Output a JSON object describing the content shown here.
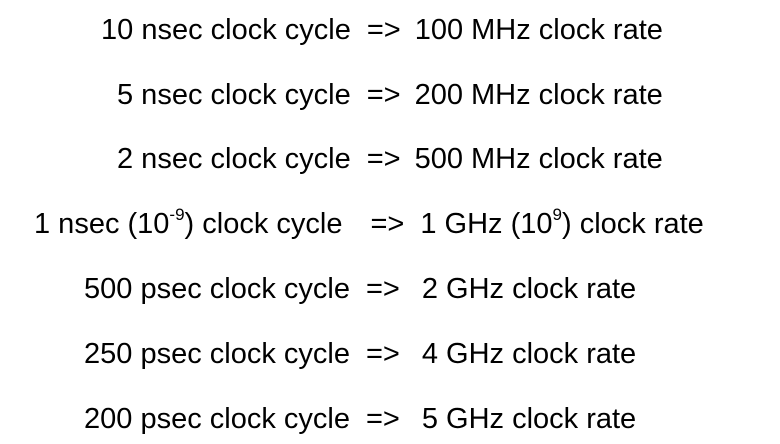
{
  "lines": [
    {
      "cycle": "10 nsec clock cycle",
      "arrow": "=>",
      "rate": "100 MHz clock rate"
    },
    {
      "cycle": "5 nsec clock cycle",
      "arrow": "=>",
      "rate": "200 MHz clock rate"
    },
    {
      "cycle": "2 nsec clock cycle",
      "arrow": "=>",
      "rate": "500 MHz clock rate"
    },
    {
      "cycle_pre": "1 nsec (10",
      "cycle_exp": "-9",
      "cycle_post": ") clock cycle",
      "arrow": "=>",
      "rate_pre": "1 GHz (10",
      "rate_exp": "9",
      "rate_post": ") clock rate"
    },
    {
      "cycle": "500 psec clock cycle",
      "arrow": "=>",
      "rate": "2 GHz clock rate"
    },
    {
      "cycle": "250 psec clock cycle",
      "arrow": "=>",
      "rate": "4 GHz clock rate"
    },
    {
      "cycle": "200 psec clock cycle",
      "arrow": "=>",
      "rate": "5 GHz clock rate"
    }
  ]
}
